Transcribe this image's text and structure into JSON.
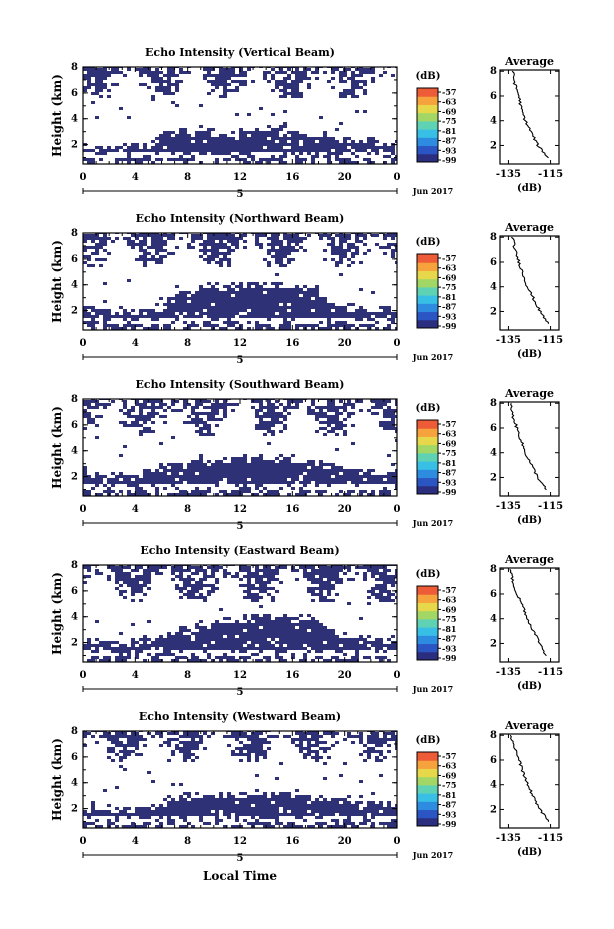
{
  "figure": {
    "colorbar_ticks": [
      "-57",
      "-63",
      "-69",
      "-75",
      "-81",
      "-87",
      "-93",
      "-99"
    ],
    "colorbar_unit": "(dB)",
    "fill_color": "#2f3176",
    "date_label": "Jun 2017",
    "day_label": "5",
    "xlabel": "Local Time",
    "ylabel": "Height (km)",
    "avg_title": "Average",
    "avg_xlabel": "(dB)",
    "colormap": [
      "#2b2d7e",
      "#2c55c4",
      "#2d8be0",
      "#38bfe6",
      "#5fd2b4",
      "#a3d765",
      "#e6d84a",
      "#f6a23d",
      "#ee5b37"
    ]
  },
  "chart_data": [
    {
      "type": "heatmap",
      "title": "Echo Intensity (Vertical Beam)",
      "x_ticks": [
        "0",
        "4",
        "8",
        "12",
        "16",
        "20",
        "0"
      ],
      "y_ticks": [
        "2",
        "4",
        "6",
        "8"
      ],
      "xlim": [
        0,
        24
      ],
      "ylim": [
        0.5,
        8
      ],
      "lower_layer_top_km": [
        2.0,
        1.9,
        2.0,
        1.8,
        2.0,
        2.1,
        2.8,
        3.0,
        3.1,
        3.2,
        3.0,
        2.9,
        3.1,
        3.2,
        3.3,
        3.2,
        3.1,
        3.0,
        2.8,
        2.6,
        2.5,
        2.4,
        2.3,
        2.2
      ],
      "upper_speckle_band_km": [
        5.5,
        7.9
      ],
      "avg_x_ticks": [
        "-135",
        "-115"
      ],
      "avg_y_ticks": [
        "2",
        "4",
        "6",
        "8"
      ],
      "avg_profile": [
        {
          "h": 8.0,
          "db": -133
        },
        {
          "h": 7.0,
          "db": -132
        },
        {
          "h": 6.0,
          "db": -130
        },
        {
          "h": 5.0,
          "db": -129
        },
        {
          "h": 4.0,
          "db": -127
        },
        {
          "h": 3.0,
          "db": -124
        },
        {
          "h": 2.0,
          "db": -121
        },
        {
          "h": 1.0,
          "db": -116
        }
      ]
    },
    {
      "type": "heatmap",
      "title": "Echo Intensity (Northward Beam)",
      "x_ticks": [
        "0",
        "4",
        "8",
        "12",
        "16",
        "20",
        "0"
      ],
      "y_ticks": [
        "2",
        "4",
        "6",
        "8"
      ],
      "xlim": [
        0,
        24
      ],
      "ylim": [
        0.5,
        8
      ],
      "lower_layer_top_km": [
        2.2,
        2.1,
        2.0,
        2.0,
        2.0,
        2.1,
        2.5,
        3.0,
        3.5,
        3.8,
        3.9,
        4.0,
        4.0,
        4.0,
        4.0,
        4.0,
        4.0,
        3.9,
        3.6,
        2.5,
        2.3,
        2.2,
        2.2,
        2.2
      ],
      "upper_speckle_band_km": [
        5.3,
        7.9
      ],
      "avg_x_ticks": [
        "-135",
        "-115"
      ],
      "avg_y_ticks": [
        "2",
        "4",
        "6",
        "8"
      ],
      "avg_profile": [
        {
          "h": 8.0,
          "db": -133
        },
        {
          "h": 7.0,
          "db": -132
        },
        {
          "h": 6.0,
          "db": -130
        },
        {
          "h": 5.0,
          "db": -128
        },
        {
          "h": 4.0,
          "db": -126
        },
        {
          "h": 3.0,
          "db": -123
        },
        {
          "h": 2.0,
          "db": -120
        },
        {
          "h": 1.0,
          "db": -116
        }
      ]
    },
    {
      "type": "heatmap",
      "title": "Echo Intensity (Southward Beam)",
      "x_ticks": [
        "0",
        "4",
        "8",
        "12",
        "16",
        "20",
        "0"
      ],
      "y_ticks": [
        "2",
        "4",
        "6",
        "8"
      ],
      "xlim": [
        0,
        24
      ],
      "ylim": [
        0.5,
        8
      ],
      "lower_layer_top_km": [
        2.4,
        2.3,
        2.2,
        2.1,
        2.2,
        2.5,
        2.9,
        3.2,
        3.3,
        3.2,
        3.3,
        3.4,
        3.5,
        3.5,
        3.6,
        3.5,
        3.4,
        3.3,
        3.1,
        3.0,
        2.8,
        2.6,
        2.5,
        2.4
      ],
      "upper_speckle_band_km": [
        5.2,
        7.9
      ],
      "avg_x_ticks": [
        "-135",
        "-115"
      ],
      "avg_y_ticks": [
        "2",
        "4",
        "6",
        "8"
      ],
      "avg_profile": [
        {
          "h": 8.0,
          "db": -134
        },
        {
          "h": 7.0,
          "db": -133
        },
        {
          "h": 6.0,
          "db": -131
        },
        {
          "h": 5.0,
          "db": -129
        },
        {
          "h": 4.0,
          "db": -127
        },
        {
          "h": 3.0,
          "db": -124
        },
        {
          "h": 2.0,
          "db": -121
        },
        {
          "h": 1.0,
          "db": -117
        }
      ]
    },
    {
      "type": "heatmap",
      "title": "Echo Intensity (Eastward Beam)",
      "x_ticks": [
        "0",
        "4",
        "8",
        "12",
        "16",
        "20",
        "0"
      ],
      "y_ticks": [
        "2",
        "4",
        "6",
        "8"
      ],
      "xlim": [
        0,
        24
      ],
      "ylim": [
        0.5,
        8
      ],
      "lower_layer_top_km": [
        2.3,
        2.2,
        2.1,
        2.0,
        2.1,
        2.3,
        2.6,
        2.9,
        3.0,
        3.3,
        3.6,
        3.8,
        3.9,
        3.9,
        4.0,
        3.9,
        3.9,
        3.8,
        3.6,
        3.0,
        2.7,
        2.5,
        2.4,
        2.3
      ],
      "upper_speckle_band_km": [
        5.2,
        7.9
      ],
      "avg_x_ticks": [
        "-135",
        "-115"
      ],
      "avg_y_ticks": [
        "2",
        "4",
        "6",
        "8"
      ],
      "avg_profile": [
        {
          "h": 8.0,
          "db": -134
        },
        {
          "h": 7.0,
          "db": -133
        },
        {
          "h": 6.0,
          "db": -131
        },
        {
          "h": 5.0,
          "db": -128
        },
        {
          "h": 4.0,
          "db": -126
        },
        {
          "h": 3.0,
          "db": -123
        },
        {
          "h": 2.0,
          "db": -120
        },
        {
          "h": 1.0,
          "db": -117
        }
      ]
    },
    {
      "type": "heatmap",
      "title": "Echo Intensity (Westward Beam)",
      "x_ticks": [
        "0",
        "4",
        "8",
        "12",
        "16",
        "20",
        "0"
      ],
      "y_ticks": [
        "2",
        "4",
        "6",
        "8"
      ],
      "xlim": [
        0,
        24
      ],
      "ylim": [
        0.5,
        8
      ],
      "lower_layer_top_km": [
        2.1,
        2.0,
        2.0,
        1.9,
        2.0,
        2.2,
        2.6,
        2.9,
        3.0,
        3.1,
        3.1,
        3.2,
        3.2,
        3.3,
        3.3,
        3.2,
        3.2,
        3.1,
        3.0,
        2.9,
        2.8,
        2.6,
        2.5,
        2.4
      ],
      "upper_speckle_band_km": [
        5.5,
        7.9
      ],
      "avg_x_ticks": [
        "-135",
        "-115"
      ],
      "avg_y_ticks": [
        "2",
        "4",
        "6",
        "8"
      ],
      "avg_profile": [
        {
          "h": 8.0,
          "db": -134
        },
        {
          "h": 7.0,
          "db": -132
        },
        {
          "h": 6.0,
          "db": -130
        },
        {
          "h": 5.0,
          "db": -128
        },
        {
          "h": 4.0,
          "db": -126
        },
        {
          "h": 3.0,
          "db": -123
        },
        {
          "h": 2.0,
          "db": -120
        },
        {
          "h": 1.0,
          "db": -116
        }
      ]
    }
  ]
}
